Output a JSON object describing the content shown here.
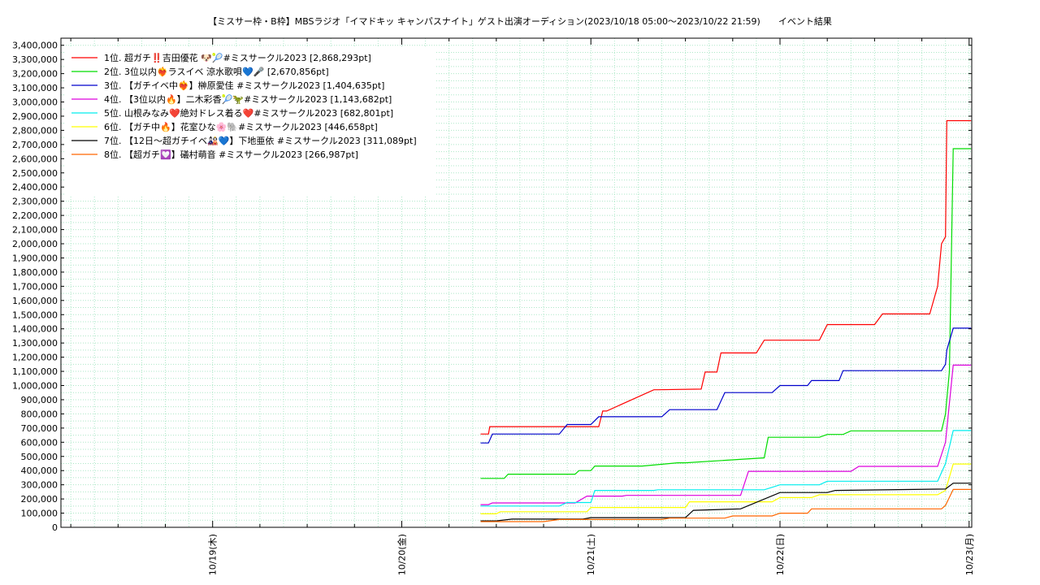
{
  "chart_data": {
    "type": "line",
    "title": "【ミスサー枠・B枠】MBSラジオ「イマドキッ キャンパスナイト」ゲスト出演オーディション(2023/10/18 05:00〜2023/10/22 21:59)　　イベント結果",
    "xlabel": "",
    "ylabel": "",
    "x_tick_labels": [
      "10/19(木)",
      "10/20(金)",
      "10/21(土)",
      "10/22(日)",
      "10/23(月)"
    ],
    "x_tick_values": [
      "2023-10-19",
      "2023-10-20",
      "2023-10-21",
      "2023-10-22",
      "2023-10-23"
    ],
    "xlim": [
      "2023-10-18 04:45",
      "2023-10-23 00:20"
    ],
    "ylim": [
      0,
      3450000
    ],
    "y_tick_step": 100000,
    "grid": true,
    "legend_position": "top-left",
    "series": [
      {
        "name": "1位. 超ガチ‼️吉田優花 🐶🎾#ミスサークル2023 [2,868,293pt]",
        "color": "#ff0000",
        "x": [
          "2023-10-20 10:00",
          "2023-10-20 11:00",
          "2023-10-20 11:10",
          "2023-10-21 01:00",
          "2023-10-21 01:30",
          "2023-10-21 02:00",
          "2023-10-21 08:00",
          "2023-10-21 08:30",
          "2023-10-21 14:00",
          "2023-10-21 14:30",
          "2023-10-21 16:00",
          "2023-10-21 16:30",
          "2023-10-21 21:00",
          "2023-10-21 22:00",
          "2023-10-21 23:30",
          "2023-10-22 00:00",
          "2023-10-22 05:00",
          "2023-10-22 06:00",
          "2023-10-22 12:00",
          "2023-10-22 13:00",
          "2023-10-22 19:00",
          "2023-10-22 20:00",
          "2023-10-22 20:30",
          "2023-10-22 21:00",
          "2023-10-22 21:10",
          "2023-10-22 21:59",
          "2023-10-23 00:15"
        ],
        "values": [
          658000,
          658000,
          710000,
          710000,
          820000,
          820000,
          970000,
          970000,
          975000,
          1095000,
          1095000,
          1230000,
          1230000,
          1320000,
          1320000,
          1320000,
          1320000,
          1430000,
          1430000,
          1505000,
          1505000,
          1700000,
          2000000,
          2050000,
          2868293,
          2868293,
          2868293
        ]
      },
      {
        "name": "2位. 3位以内❤️‍🔥ラスイベ 涼水歌唄💙🎤 [2,670,856pt]",
        "color": "#00dd00",
        "x": [
          "2023-10-20 10:00",
          "2023-10-20 13:00",
          "2023-10-20 13:30",
          "2023-10-20 22:00",
          "2023-10-20 22:30",
          "2023-10-21 00:00",
          "2023-10-21 00:30",
          "2023-10-21 06:00",
          "2023-10-21 06:30",
          "2023-10-21 11:00",
          "2023-10-21 12:00",
          "2023-10-21 22:00",
          "2023-10-21 22:30",
          "2023-10-22 05:00",
          "2023-10-22 06:00",
          "2023-10-22 08:00",
          "2023-10-22 09:00",
          "2023-10-22 20:30",
          "2023-10-22 21:00",
          "2023-10-22 21:30",
          "2023-10-22 21:59",
          "2023-10-23 00:15"
        ],
        "values": [
          345000,
          345000,
          375000,
          375000,
          400000,
          400000,
          432000,
          432000,
          432000,
          455000,
          455000,
          490000,
          635000,
          635000,
          655000,
          655000,
          680000,
          680000,
          800000,
          1100000,
          2670856,
          2670856
        ]
      },
      {
        "name": "3位. 【ガチイベ中❤️‍🔥】榊原愛佳 #ミスサークル2023 [1,404,635pt]",
        "color": "#0000cc",
        "x": [
          "2023-10-20 10:00",
          "2023-10-20 11:00",
          "2023-10-20 11:30",
          "2023-10-20 20:00",
          "2023-10-20 21:00",
          "2023-10-21 00:00",
          "2023-10-21 01:00",
          "2023-10-21 09:00",
          "2023-10-21 10:00",
          "2023-10-21 16:00",
          "2023-10-21 17:00",
          "2023-10-21 23:00",
          "2023-10-22 00:00",
          "2023-10-22 03:30",
          "2023-10-22 04:00",
          "2023-10-22 07:30",
          "2023-10-22 08:00",
          "2023-10-22 20:30",
          "2023-10-22 21:00",
          "2023-10-22 21:10",
          "2023-10-22 21:59",
          "2023-10-23 00:15"
        ],
        "values": [
          595000,
          595000,
          658000,
          658000,
          725000,
          725000,
          780000,
          780000,
          830000,
          830000,
          950000,
          950000,
          1000000,
          1000000,
          1035000,
          1035000,
          1105000,
          1105000,
          1150000,
          1250000,
          1404635,
          1404635
        ]
      },
      {
        "name": "4位. 【3位以内🔥】二木彩香🎾🦖#ミスサークル2023 [1,143,682pt]",
        "color": "#dd00dd",
        "x": [
          "2023-10-20 10:00",
          "2023-10-20 11:00",
          "2023-10-20 11:30",
          "2023-10-20 22:00",
          "2023-10-20 23:30",
          "2023-10-21 04:00",
          "2023-10-21 04:30",
          "2023-10-21 19:00",
          "2023-10-21 20:00",
          "2023-10-22 09:00",
          "2023-10-22 10:00",
          "2023-10-22 20:00",
          "2023-10-22 21:00",
          "2023-10-22 21:59",
          "2023-10-23 00:15"
        ],
        "values": [
          160000,
          160000,
          172000,
          172000,
          220000,
          220000,
          225000,
          225000,
          395000,
          395000,
          430000,
          430000,
          600000,
          1143682,
          1143682
        ]
      },
      {
        "name": "5位. 山根みなみ❤️絶対ドレス着る❤️#ミスサークル2023 [682,801pt]",
        "color": "#00eeee",
        "x": [
          "2023-10-20 10:00",
          "2023-10-20 20:00",
          "2023-10-20 21:00",
          "2023-10-21 00:00",
          "2023-10-21 00:30",
          "2023-10-21 08:00",
          "2023-10-21 08:30",
          "2023-10-21 22:00",
          "2023-10-22 00:00",
          "2023-10-22 05:00",
          "2023-10-22 06:00",
          "2023-10-22 20:00",
          "2023-10-22 21:00",
          "2023-10-22 21:59",
          "2023-10-23 00:15"
        ],
        "values": [
          150000,
          150000,
          175000,
          175000,
          260000,
          260000,
          265000,
          265000,
          300000,
          300000,
          325000,
          325000,
          450000,
          682801,
          682801
        ]
      },
      {
        "name": "6位. 【ガチ中🔥】花室ひな🌸🐘#ミスサークル2023 [446,658pt]",
        "color": "#ffff00",
        "x": [
          "2023-10-20 10:00",
          "2023-10-20 12:00",
          "2023-10-20 12:30",
          "2023-10-20 23:30",
          "2023-10-21 00:00",
          "2023-10-21 04:00",
          "2023-10-21 04:30",
          "2023-10-21 12:00",
          "2023-10-21 12:30",
          "2023-10-21 23:00",
          "2023-10-22 00:00",
          "2023-10-22 04:00",
          "2023-10-22 05:00",
          "2023-10-22 20:00",
          "2023-10-22 21:00",
          "2023-10-22 21:59",
          "2023-10-23 00:15"
        ],
        "values": [
          95000,
          95000,
          110000,
          110000,
          140000,
          140000,
          140000,
          140000,
          180000,
          180000,
          210000,
          210000,
          230000,
          230000,
          260000,
          446658,
          446658
        ]
      },
      {
        "name": "7位. 【12日〜超ガチイベ🎎💙】下地亜依 #ミスサークル2023 [311,089pt]",
        "color": "#000000",
        "x": [
          "2023-10-20 10:00",
          "2023-10-20 12:00",
          "2023-10-20 14:00",
          "2023-10-20 23:00",
          "2023-10-21 00:00",
          "2023-10-21 12:00",
          "2023-10-21 13:00",
          "2023-10-21 19:00",
          "2023-10-22 00:00",
          "2023-10-22 06:00",
          "2023-10-22 07:00",
          "2023-10-22 21:00",
          "2023-10-22 21:59",
          "2023-10-23 00:15"
        ],
        "values": [
          45000,
          45000,
          58000,
          58000,
          68000,
          68000,
          120000,
          130000,
          245000,
          245000,
          260000,
          270000,
          311089,
          311089
        ]
      },
      {
        "name": "8位. 【超ガチ💟】礒村萌音 #ミスサークル2023 [266,987pt]",
        "color": "#ff6600",
        "x": [
          "2023-10-20 10:00",
          "2023-10-20 18:00",
          "2023-10-20 20:00",
          "2023-10-21 09:00",
          "2023-10-21 10:00",
          "2023-10-21 17:00",
          "2023-10-21 18:00",
          "2023-10-21 23:00",
          "2023-10-22 00:00",
          "2023-10-22 03:30",
          "2023-10-22 04:00",
          "2023-10-22 20:30",
          "2023-10-22 21:00",
          "2023-10-22 21:59",
          "2023-10-23 00:15"
        ],
        "values": [
          40000,
          40000,
          55000,
          55000,
          65000,
          65000,
          80000,
          80000,
          100000,
          100000,
          130000,
          130000,
          155000,
          266987,
          266987
        ]
      }
    ]
  }
}
